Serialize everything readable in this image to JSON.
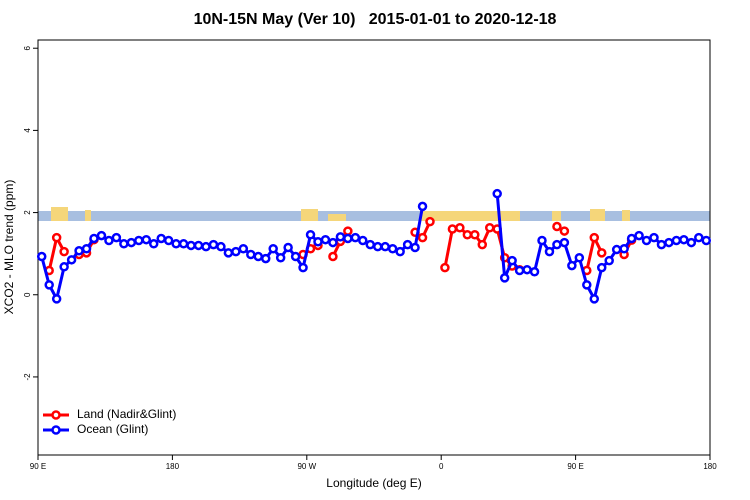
{
  "chart_data": {
    "type": "line",
    "title": "10N-15N May (Ver 10)   2015-01-01 to 2020-12-18",
    "x_label": "Longitude (deg E)",
    "y_label": "XCO2 - MLO trend (ppm)",
    "xlim": [
      90,
      540
    ],
    "ylim": [
      -3.9,
      6.2
    ],
    "xticks": [
      {
        "value": 90,
        "label": "90 E"
      },
      180,
      {
        "value": 270,
        "label": "90 W"
      },
      {
        "value": 360,
        "label": "0"
      },
      {
        "value": 450,
        "label": "90 E"
      },
      {
        "value": 540,
        "label": "180"
      }
    ],
    "yticks": [
      -2,
      0,
      2,
      4,
      6
    ],
    "legend_position": "bottom-left",
    "x": [
      92.5,
      97.5,
      102.5,
      107.5,
      112.5,
      117.5,
      122.5,
      127.5,
      132.5,
      137.5,
      142.5,
      147.5,
      152.5,
      157.5,
      162.5,
      167.5,
      172.5,
      177.5,
      182.5,
      187.5,
      192.5,
      197.5,
      202.5,
      207.5,
      212.5,
      217.5,
      222.5,
      227.5,
      232.5,
      237.5,
      242.5,
      247.5,
      252.5,
      257.5,
      262.5,
      267.5,
      272.5,
      277.5,
      282.5,
      287.5,
      292.5,
      297.5,
      302.5,
      307.5,
      312.5,
      317.5,
      322.5,
      327.5,
      332.5,
      337.5,
      342.5,
      347.5,
      352.5,
      357.5,
      362.5,
      367.5,
      372.5,
      377.5,
      382.5,
      387.5,
      392.5,
      397.5,
      402.5,
      407.5,
      412.5,
      417.5,
      422.5,
      427.5,
      432.5,
      437.5,
      442.5,
      447.5,
      452.5,
      457.5,
      462.5,
      467.5,
      472.5,
      477.5,
      482.5,
      487.5,
      492.5,
      497.5,
      502.5,
      507.5,
      512.5,
      517.5,
      522.5,
      527.5,
      532.5,
      537.5
    ],
    "series": [
      {
        "name": "Land (Nadir&Glint)",
        "color": "#ff0000",
        "values": [
          null,
          0.59,
          1.39,
          1.05,
          null,
          0.98,
          1.02,
          1.34,
          null,
          null,
          null,
          null,
          null,
          null,
          null,
          null,
          null,
          null,
          null,
          null,
          null,
          null,
          null,
          null,
          null,
          null,
          null,
          null,
          null,
          null,
          null,
          null,
          null,
          null,
          null,
          0.98,
          1.12,
          1.2,
          null,
          0.93,
          1.3,
          1.55,
          null,
          null,
          null,
          null,
          null,
          null,
          null,
          null,
          1.52,
          1.39,
          1.78,
          null,
          0.66,
          1.6,
          1.63,
          1.46,
          1.46,
          1.22,
          1.63,
          1.6,
          0.9,
          0.7,
          0.61,
          null,
          null,
          null,
          null,
          1.66,
          1.55,
          null,
          null,
          0.59,
          1.39,
          1.02,
          null,
          null,
          0.98,
          1.33,
          null,
          null,
          null,
          null,
          null,
          null,
          null,
          null,
          null,
          null
        ]
      },
      {
        "name": "Ocean (Glint)",
        "color": "#0000ff",
        "values": [
          0.93,
          0.24,
          -0.1,
          0.68,
          0.85,
          1.07,
          1.12,
          1.37,
          1.44,
          1.32,
          1.39,
          1.24,
          1.27,
          1.32,
          1.34,
          1.24,
          1.37,
          1.32,
          1.24,
          1.24,
          1.2,
          1.2,
          1.17,
          1.22,
          1.17,
          1.02,
          1.05,
          1.12,
          0.98,
          0.93,
          0.88,
          1.12,
          0.9,
          1.15,
          0.93,
          0.66,
          1.46,
          1.29,
          1.34,
          1.27,
          1.41,
          1.37,
          1.39,
          1.32,
          1.22,
          1.17,
          1.17,
          1.12,
          1.05,
          1.22,
          1.15,
          2.15,
          null,
          null,
          null,
          null,
          null,
          null,
          null,
          null,
          null,
          2.46,
          0.41,
          0.83,
          0.59,
          0.61,
          0.56,
          1.32,
          1.05,
          1.22,
          1.27,
          0.71,
          0.9,
          0.24,
          -0.1,
          0.66,
          0.83,
          1.1,
          1.12,
          1.37,
          1.44,
          1.32,
          1.39,
          1.22,
          1.27,
          1.32,
          1.34,
          1.27,
          1.39,
          1.32
        ]
      }
    ]
  }
}
